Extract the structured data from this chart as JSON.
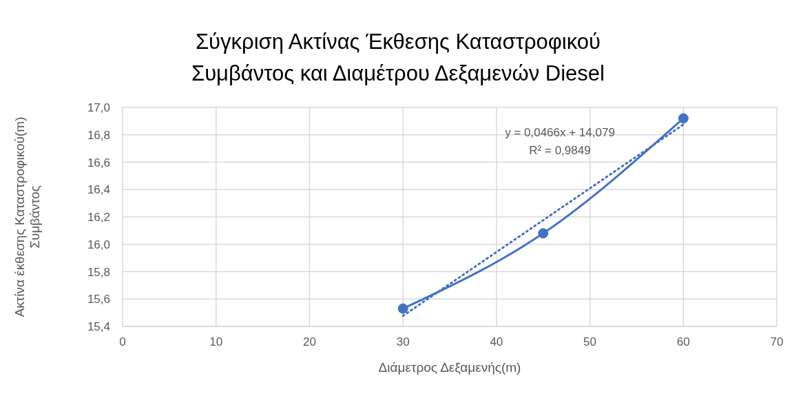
{
  "chart_data": {
    "type": "line",
    "title": "Σύγκριση Ακτίνας Έκθεσης Καταστροφικού Συμβάντος και Διαμέτρου Δεξαμενών Diesel",
    "xlabel": "Διάμετρος Δεξαμενής(m)",
    "ylabel": "Ακτίνα έκθεσης Καταστροφικού(m) Συμβάντος",
    "x": [
      30,
      45,
      60
    ],
    "series": [
      {
        "color": "#4472c4",
        "values": [
          15.53,
          16.08,
          16.92
        ],
        "marker": "circle",
        "line_style": "solid"
      },
      {
        "type": "line",
        "color": "#4472c4",
        "x": [
          30,
          60
        ],
        "values": [
          15.477,
          16.875
        ],
        "marker": "none",
        "line_style": "dotted"
      }
    ],
    "annotations": [
      "y = 0,0466x + 14,079",
      "R² = 0,9849"
    ],
    "xlim": [
      0,
      70
    ],
    "xticks": [
      0,
      10,
      20,
      30,
      40,
      50,
      60,
      70
    ],
    "ylim": [
      15.4,
      17.0
    ],
    "yticks": [
      {
        "value": 15.4,
        "label": "15,4"
      },
      {
        "value": 15.6,
        "label": "15,6"
      },
      {
        "value": 15.8,
        "label": "15,8"
      },
      {
        "value": 16.0,
        "label": "16,0"
      },
      {
        "value": 16.2,
        "label": "16,2"
      },
      {
        "value": 16.4,
        "label": "16,4"
      },
      {
        "value": 16.6,
        "label": "16,6"
      },
      {
        "value": 16.8,
        "label": "16,8"
      },
      {
        "value": 17.0,
        "label": "17,0"
      }
    ],
    "grid": true
  }
}
